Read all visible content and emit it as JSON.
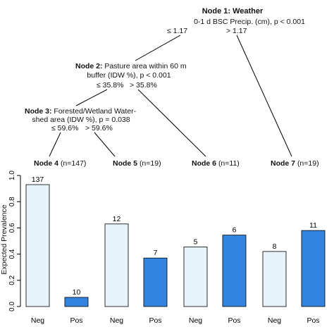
{
  "tree": {
    "node1": {
      "title": "Node 1: Weather",
      "line1": "0-1 d BSC Precip. (cm), p < 0.001",
      "left": "≤ 1.17",
      "right": "> 1.17"
    },
    "node2": {
      "title": "Node 2:",
      "line1": " Pasture area within 60 m",
      "line2": "buffer (IDW %), p < 0.001",
      "left": "≤ 35.8%",
      "right": "> 35.8%"
    },
    "node3": {
      "title": "Node 3:",
      "line1": " Forested/Wetland Water-",
      "line2": "shed area (IDW %), p = 0.038",
      "left": "≤ 59.6%",
      "right": "> 59.6%"
    }
  },
  "ylabel": "Expected Prevalence",
  "colors": {
    "neg": "#e6f4fa",
    "pos": "#3383e0",
    "stroke": "#000000"
  },
  "chart_data": {
    "type": "bar",
    "ylim": [
      0,
      1
    ],
    "yticks": [
      "0.0",
      "0.2",
      "0.4",
      "0.6",
      "0.8",
      "1.0"
    ],
    "categories": [
      "Neg",
      "Pos"
    ],
    "panels": [
      {
        "node": "Node 4",
        "n": "(n=147)",
        "values": [
          0.93,
          0.07
        ],
        "labels": [
          "137",
          "10"
        ]
      },
      {
        "node": "Node 5",
        "n": "(n=19)",
        "values": [
          0.63,
          0.37
        ],
        "labels": [
          "12",
          "7"
        ]
      },
      {
        "node": "Node 6",
        "n": "(n=11)",
        "values": [
          0.455,
          0.545
        ],
        "labels": [
          "5",
          "6"
        ]
      },
      {
        "node": "Node 7",
        "n": "(n=19)",
        "values": [
          0.42,
          0.58
        ],
        "labels": [
          "8",
          "11"
        ]
      }
    ]
  }
}
